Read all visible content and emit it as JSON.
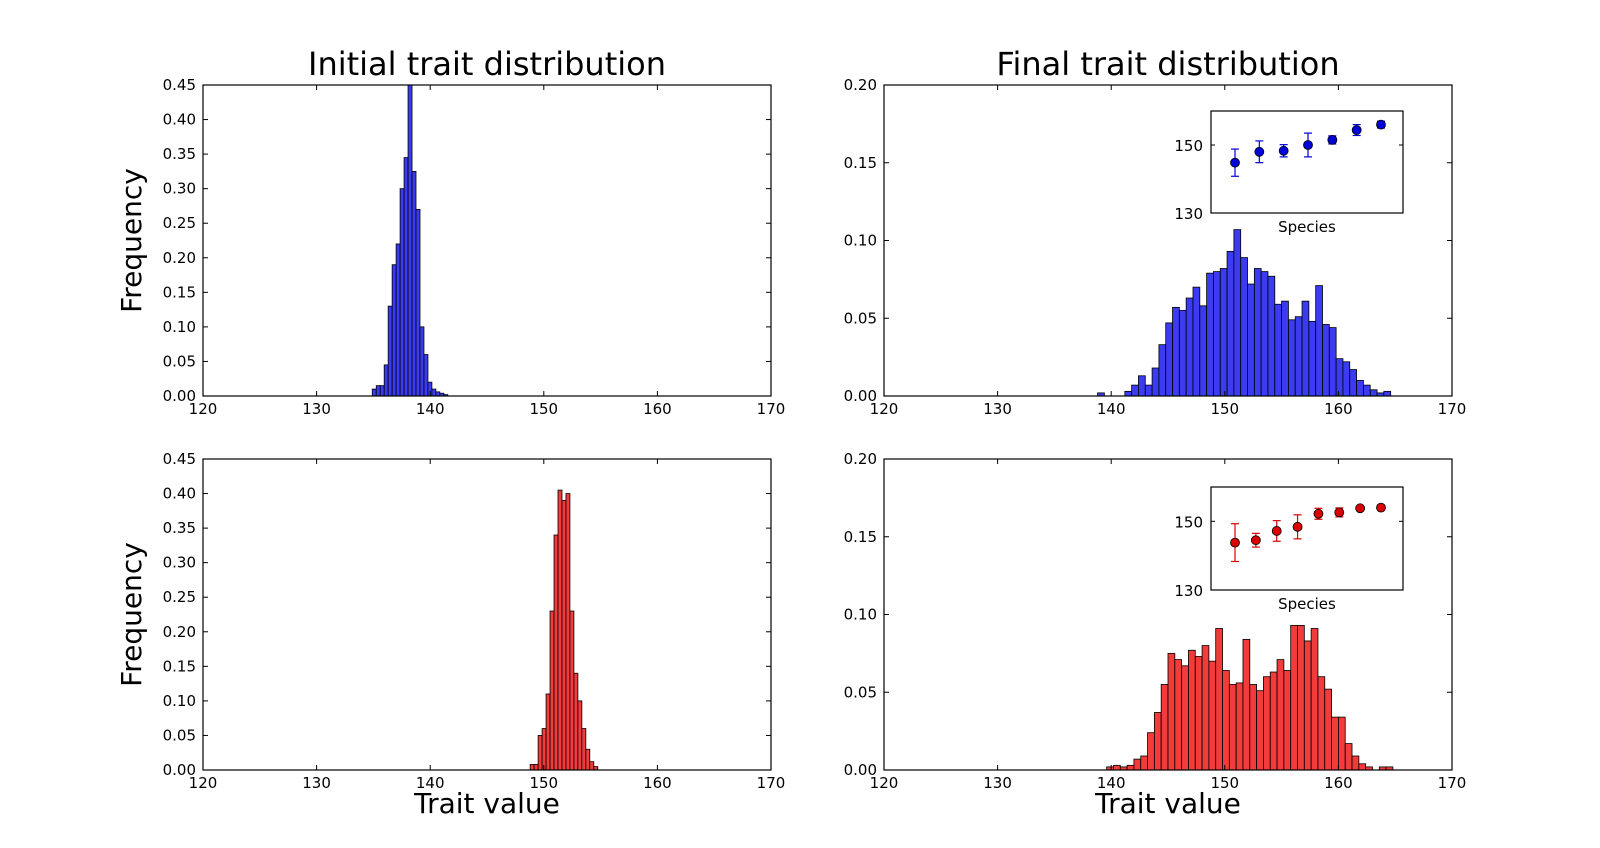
{
  "chart_data": [
    {
      "type": "bar",
      "title": "Initial trait distribution",
      "xlabel": "",
      "ylabel": "Frequency",
      "xlim": [
        120,
        170
      ],
      "ylim": [
        0,
        0.45
      ],
      "xticks": [
        "120",
        "130",
        "140",
        "150",
        "160",
        "170"
      ],
      "yticks": [
        "0.00",
        "0.05",
        "0.10",
        "0.15",
        "0.20",
        "0.25",
        "0.30",
        "0.35",
        "0.40",
        "0.45"
      ],
      "bin_width": 0.35,
      "bin_start": 134.9,
      "values": [
        0.01,
        0.015,
        0.015,
        0.045,
        0.13,
        0.19,
        0.22,
        0.3,
        0.345,
        0.45,
        0.325,
        0.27,
        0.1,
        0.06,
        0.02,
        0.01,
        0.006,
        0.004,
        0.002
      ],
      "color": "#3b3bf2"
    },
    {
      "type": "bar",
      "title": "Final trait distribution",
      "xlabel": "",
      "ylabel": "",
      "xlim": [
        120,
        170
      ],
      "ylim": [
        0,
        0.2
      ],
      "xticks": [
        "120",
        "130",
        "140",
        "150",
        "160",
        "170"
      ],
      "yticks": [
        "0.00",
        "0.05",
        "0.10",
        "0.15",
        "0.20"
      ],
      "bin_width": 0.6,
      "bin_start": 138.8,
      "values": [
        0.002,
        0,
        0,
        0,
        0.003,
        0.007,
        0.013,
        0.007,
        0.018,
        0.033,
        0.047,
        0.057,
        0.055,
        0.063,
        0.07,
        0.058,
        0.079,
        0.08,
        0.082,
        0.093,
        0.107,
        0.089,
        0.072,
        0.082,
        0.08,
        0.077,
        0.059,
        0.061,
        0.049,
        0.051,
        0.061,
        0.048,
        0.071,
        0.046,
        0.044,
        0.024,
        0.022,
        0.017,
        0.01,
        0.007,
        0.004,
        0.002,
        0.003
      ],
      "color": "#3b3bf2",
      "inset": {
        "type": "scatter",
        "xlabel": "Species",
        "ylim": [
          130,
          160
        ],
        "yticks": [
          "130",
          "150"
        ],
        "y": [
          144.8,
          148,
          148.3,
          150,
          151.5,
          154.4,
          156
        ],
        "err": [
          4,
          3.2,
          1.8,
          3.5,
          1.2,
          1.6,
          1
        ],
        "color": "#0000d8"
      }
    },
    {
      "type": "bar",
      "title": "",
      "xlabel": "Trait value",
      "ylabel": "Frequency",
      "xlim": [
        120,
        170
      ],
      "ylim": [
        0,
        0.45
      ],
      "xticks": [
        "120",
        "130",
        "140",
        "150",
        "160",
        "170"
      ],
      "yticks": [
        "0.00",
        "0.05",
        "0.10",
        "0.15",
        "0.20",
        "0.25",
        "0.30",
        "0.35",
        "0.40",
        "0.45"
      ],
      "bin_width": 0.35,
      "bin_start": 148.8,
      "values": [
        0.008,
        0.008,
        0.05,
        0.06,
        0.11,
        0.23,
        0.34,
        0.405,
        0.39,
        0.4,
        0.23,
        0.14,
        0.1,
        0.06,
        0.03,
        0.012,
        0.005
      ],
      "color": "#f23b3b"
    },
    {
      "type": "bar",
      "title": "",
      "xlabel": "Trait value",
      "ylabel": "",
      "xlim": [
        120,
        170
      ],
      "ylim": [
        0,
        0.2
      ],
      "xticks": [
        "120",
        "130",
        "140",
        "150",
        "160",
        "170"
      ],
      "yticks": [
        "0.00",
        "0.05",
        "0.10",
        "0.15",
        "0.20"
      ],
      "bin_width": 0.6,
      "bin_start": 139.6,
      "values": [
        0.002,
        0.003,
        0.002,
        0.003,
        0.007,
        0.009,
        0.024,
        0.037,
        0.055,
        0.075,
        0.071,
        0.067,
        0.077,
        0.073,
        0.08,
        0.07,
        0.091,
        0.064,
        0.055,
        0.056,
        0.084,
        0.055,
        0.051,
        0.06,
        0.063,
        0.071,
        0.064,
        0.093,
        0.093,
        0.083,
        0.091,
        0.06,
        0.052,
        0.034,
        0.034,
        0.017,
        0.009,
        0.004,
        0.002,
        0,
        0.002,
        0.002
      ],
      "color": "#f23b3b",
      "inset": {
        "type": "scatter",
        "xlabel": "Species",
        "ylim": [
          130,
          160
        ],
        "yticks": [
          "130",
          "150"
        ],
        "y": [
          143.8,
          144.5,
          147.2,
          148.4,
          152.2,
          152.6,
          153.8,
          154
        ],
        "err": [
          5.5,
          2,
          3,
          3.5,
          1.6,
          1.3,
          0.5,
          0.3
        ],
        "color": "#d80000"
      }
    }
  ]
}
